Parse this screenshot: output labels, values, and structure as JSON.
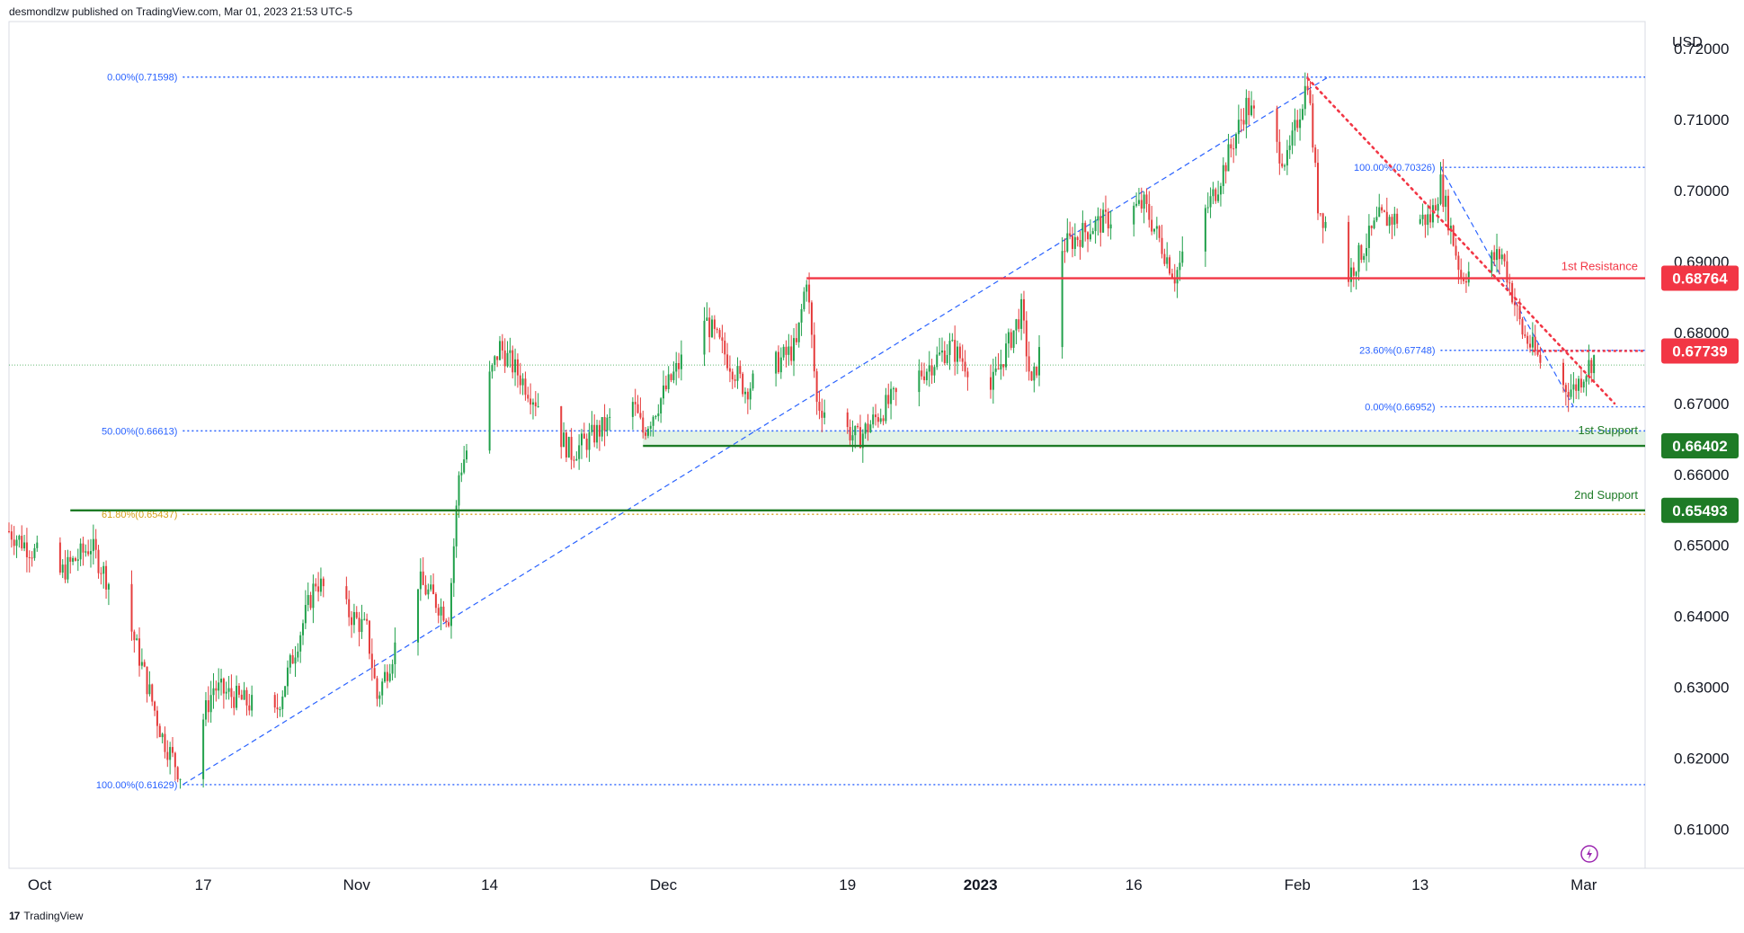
{
  "header": {
    "publisher": "desmondlzw published on TradingView.com, Mar 01, 2023 21:53 UTC-5"
  },
  "footer": {
    "logo": "17",
    "brand": "TradingView"
  },
  "colors": {
    "up": "#22a14c",
    "down": "#e53d3d",
    "resistance": "#f23645",
    "support": "#1e7b26",
    "fib": "#2962ff",
    "fib618": "#d4a017"
  },
  "chart_data": {
    "type": "candlestick",
    "currency": "USD",
    "ylim": [
      0.6045,
      0.7238
    ],
    "y_ticks": [
      0.72,
      0.71,
      0.7,
      0.69,
      0.68,
      0.67,
      0.66,
      0.65,
      0.64,
      0.63,
      0.62,
      0.61
    ],
    "y_tick_labels": [
      "0.72000",
      "0.71000",
      "0.70000",
      "0.69000",
      "0.68000",
      "0.67000",
      "0.66000",
      "0.65000",
      "0.64000",
      "0.63000",
      "0.62000",
      "0.61000"
    ],
    "x_range": [
      "2022-09-28",
      "2023-03-07"
    ],
    "x_ticks": [
      {
        "date": "2022-10-01",
        "label": "Oct",
        "bold": false
      },
      {
        "date": "2022-10-17",
        "label": "17",
        "bold": false
      },
      {
        "date": "2022-11-01",
        "label": "Nov",
        "bold": false
      },
      {
        "date": "2022-11-14",
        "label": "14",
        "bold": false
      },
      {
        "date": "2022-12-01",
        "label": "Dec",
        "bold": false
      },
      {
        "date": "2022-12-19",
        "label": "19",
        "bold": false
      },
      {
        "date": "2023-01-01",
        "label": "2023",
        "bold": true
      },
      {
        "date": "2023-01-16",
        "label": "16",
        "bold": false
      },
      {
        "date": "2023-02-01",
        "label": "Feb",
        "bold": false
      },
      {
        "date": "2023-02-13",
        "label": "13",
        "bold": false
      },
      {
        "date": "2023-03-01",
        "label": "Mar",
        "bold": false
      }
    ],
    "price_path": [
      {
        "date": "2022-09-28",
        "price": 0.652
      },
      {
        "date": "2022-10-03",
        "price": 0.646
      },
      {
        "date": "2022-10-06",
        "price": 0.65
      },
      {
        "date": "2022-10-10",
        "price": 0.638
      },
      {
        "date": "2022-10-13",
        "price": 0.623
      },
      {
        "date": "2022-10-15",
        "price": 0.617
      },
      {
        "date": "2022-10-18",
        "price": 0.63
      },
      {
        "date": "2022-10-24",
        "price": 0.626
      },
      {
        "date": "2022-10-28",
        "price": 0.645
      },
      {
        "date": "2022-11-02",
        "price": 0.638
      },
      {
        "date": "2022-11-03",
        "price": 0.6285
      },
      {
        "date": "2022-11-07",
        "price": 0.645
      },
      {
        "date": "2022-11-10",
        "price": 0.64
      },
      {
        "date": "2022-11-11",
        "price": 0.66
      },
      {
        "date": "2022-11-15",
        "price": 0.678
      },
      {
        "date": "2022-11-22",
        "price": 0.663
      },
      {
        "date": "2022-11-28",
        "price": 0.67
      },
      {
        "date": "2022-11-29",
        "price": 0.666
      },
      {
        "date": "2022-12-05",
        "price": 0.682
      },
      {
        "date": "2022-12-09",
        "price": 0.672
      },
      {
        "date": "2022-12-14",
        "price": 0.678
      },
      {
        "date": "2022-12-15",
        "price": 0.688
      },
      {
        "date": "2022-12-16",
        "price": 0.67
      },
      {
        "date": "2022-12-20",
        "price": 0.665
      },
      {
        "date": "2022-12-23",
        "price": 0.67
      },
      {
        "date": "2022-12-29",
        "price": 0.678
      },
      {
        "date": "2023-01-02",
        "price": 0.672
      },
      {
        "date": "2023-01-05",
        "price": 0.683
      },
      {
        "date": "2023-01-06",
        "price": 0.672
      },
      {
        "date": "2023-01-09",
        "price": 0.692
      },
      {
        "date": "2023-01-12",
        "price": 0.695
      },
      {
        "date": "2023-01-17",
        "price": 0.698
      },
      {
        "date": "2023-01-20",
        "price": 0.688
      },
      {
        "date": "2023-01-24",
        "price": 0.7
      },
      {
        "date": "2023-01-27",
        "price": 0.712
      },
      {
        "date": "2023-01-31",
        "price": 0.704
      },
      {
        "date": "2023-02-02",
        "price": 0.7158
      },
      {
        "date": "2023-02-03",
        "price": 0.698
      },
      {
        "date": "2023-02-06",
        "price": 0.688
      },
      {
        "date": "2023-02-09",
        "price": 0.696
      },
      {
        "date": "2023-02-14",
        "price": 0.696
      },
      {
        "date": "2023-02-15",
        "price": 0.701
      },
      {
        "date": "2023-02-17",
        "price": 0.688
      },
      {
        "date": "2023-02-21",
        "price": 0.691
      },
      {
        "date": "2023-02-23",
        "price": 0.68
      },
      {
        "date": "2023-02-26",
        "price": 0.673
      },
      {
        "date": "2023-02-28",
        "price": 0.672
      },
      {
        "date": "2023-03-02",
        "price": 0.6765
      }
    ],
    "horizontal_levels": [
      {
        "name": "1st Resistance",
        "price_label": "0.68764",
        "value": 0.68764,
        "color": "#f23645",
        "style": "solid"
      },
      {
        "name": "",
        "price_label": "0.67739",
        "value": 0.67739,
        "color": "#f23645",
        "style": "dashed"
      },
      {
        "name": "1st Support",
        "price_label": "0.66402",
        "value": 0.66402,
        "color": "#1e7b26",
        "style": "solid"
      },
      {
        "name": "2nd Support",
        "price_label": "0.65493",
        "value": 0.65493,
        "color": "#1e7b26",
        "style": "solid"
      }
    ],
    "fib_major": [
      {
        "label": "0.00%(0.71598)",
        "value": 0.71598
      },
      {
        "label": "50.00%(0.66613)",
        "value": 0.66613
      },
      {
        "label": "61.80%(0.65437)",
        "value": 0.65437
      },
      {
        "label": "100.00%(0.61629)",
        "value": 0.61629
      }
    ],
    "fib_minor": [
      {
        "label": "100.00%(0.70326)",
        "value": 0.70326
      },
      {
        "label": "23.60%(0.67748)",
        "value": 0.67748
      },
      {
        "label": "0.00%(0.66952)",
        "value": 0.66952
      }
    ],
    "current_price": 0.6754
  }
}
